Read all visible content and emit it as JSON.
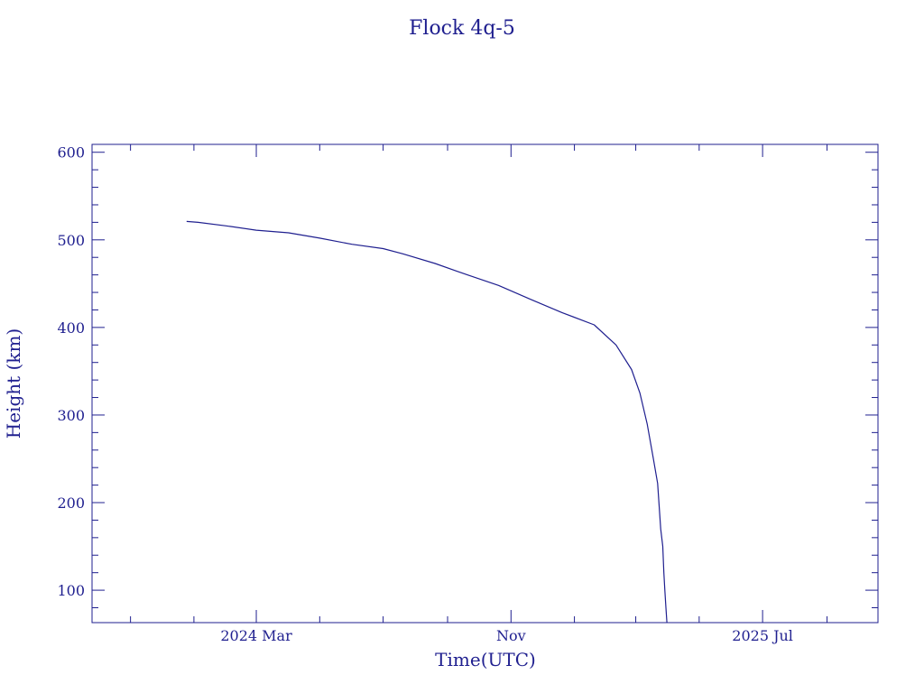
{
  "chart_data": {
    "type": "line",
    "title": "Flock 4q-5",
    "xlabel": "Time(UTC)",
    "ylabel": "Height (km)",
    "x_tick_labels": [
      "2024 Mar",
      "Nov",
      "2025 Jul"
    ],
    "x_tick_dates": [
      "2024-03-01",
      "2024-11-01",
      "2025-07-01"
    ],
    "xlim": [
      "2023-09-25",
      "2025-10-20"
    ],
    "ylim": [
      63,
      609
    ],
    "y_ticks": [
      100,
      200,
      300,
      400,
      500,
      600
    ],
    "grid": false,
    "series": [
      {
        "x": [
          "2023-12-25",
          "2024-01-05",
          "2024-02-01",
          "2024-03-01",
          "2024-04-01",
          "2024-05-01",
          "2024-06-01",
          "2024-07-01",
          "2024-07-20",
          "2024-08-20",
          "2024-09-20",
          "2024-10-20",
          "2024-11-20",
          "2024-12-20",
          "2025-01-20",
          "2025-02-10",
          "2025-02-25",
          "2025-03-05",
          "2025-03-12",
          "2025-03-18",
          "2025-03-22",
          "2025-03-25",
          "2025-03-27",
          "2025-03-28",
          "2025-03-29",
          "2025-03-30",
          "2025-03-31"
        ],
        "y": [
          521,
          520,
          516,
          511,
          508,
          502,
          495,
          490,
          484,
          473,
          460,
          448,
          432,
          417,
          403,
          380,
          352,
          325,
          290,
          250,
          222,
          170,
          150,
          120,
          100,
          80,
          63
        ]
      }
    ],
    "line_color": "#1f1f8f"
  }
}
